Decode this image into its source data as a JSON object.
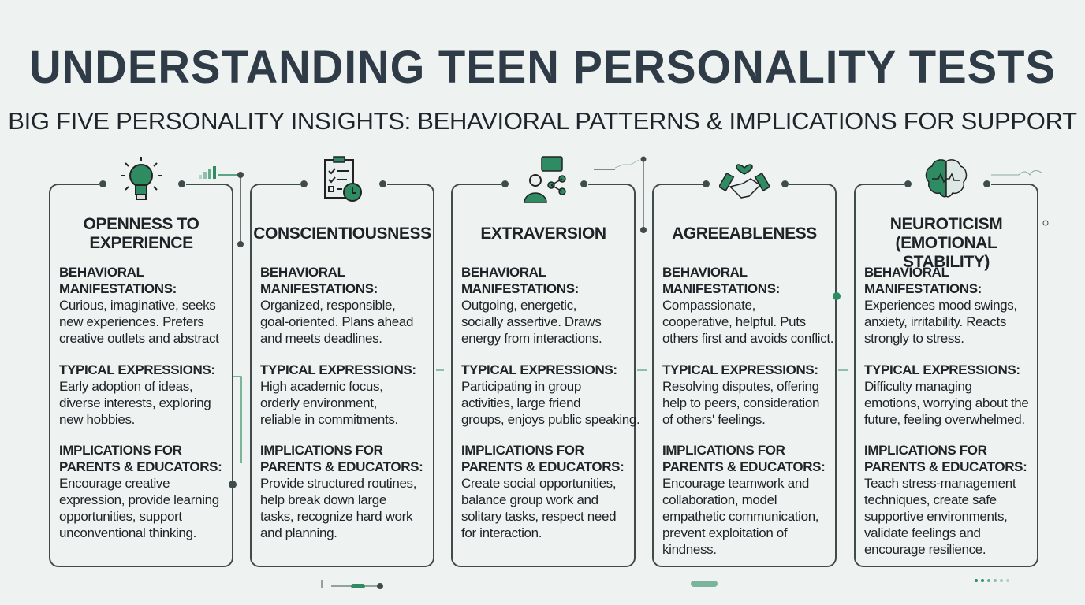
{
  "title": "UNDERSTANDING TEEN PERSONALITY TESTS",
  "subtitle": "BIG FIVE PERSONALITY INSIGHTS: BEHAVIORAL PATTERNS & IMPLICATIONS FOR SUPPORT",
  "accent": "#2e8b62",
  "panels": [
    {
      "icon": "lightbulb-icon",
      "title": [
        "OPENNESS TO",
        "EXPERIENCE"
      ],
      "behavioral_heading": [
        "BEHAVIORAL",
        "MANIFESTATIONS:"
      ],
      "behavioral": [
        "Curious, imaginative, seeks",
        "new experiences. Prefers",
        "creative outlets and abstract"
      ],
      "typical_heading": [
        "TYPICAL EXPRESSIONS:"
      ],
      "typical": [
        "Early adoption of ideas,",
        "diverse interests, exploring",
        "new hobbies."
      ],
      "implications_heading": [
        "IMPLICATIONS FOR",
        "PARENTS & EDUCATORS:"
      ],
      "implications": [
        "Encourage creative",
        "expression, provide learning",
        "opportunities, support",
        "unconventional thinking."
      ]
    },
    {
      "icon": "checklist-clock-icon",
      "title": [
        "CONSCIENTIOUSNESS"
      ],
      "behavioral_heading": [
        "BEHAVIORAL",
        "MANIFESTATIONS:"
      ],
      "behavioral": [
        "Organized, responsible,",
        "goal-oriented. Plans ahead",
        "and meets deadlines."
      ],
      "typical_heading": [
        "TYPICAL EXPRESSIONS:"
      ],
      "typical": [
        "High academic focus,",
        "orderly environment,",
        "reliable in commitments."
      ],
      "implications_heading": [
        "IMPLICATIONS FOR",
        "PARENTS & EDUCATORS:"
      ],
      "implications": [
        "Provide structured routines,",
        "help break down large",
        "tasks, recognize hard work",
        "and planning."
      ]
    },
    {
      "icon": "person-chat-network-icon",
      "title": [
        "EXTRAVERSION"
      ],
      "behavioral_heading": [
        "BEHAVIORAL",
        "MANIFESTATIONS:"
      ],
      "behavioral": [
        "Outgoing, energetic,",
        "socially assertive. Draws",
        "energy from interactions."
      ],
      "typical_heading": [
        "TYPICAL EXPRESSIONS:"
      ],
      "typical": [
        "Participating in group",
        "activities, large friend",
        "groups, enjoys public speaking."
      ],
      "implications_heading": [
        "IMPLICATIONS FOR",
        "PARENTS & EDUCATORS:"
      ],
      "implications": [
        "Create social opportunities,",
        "balance group work and",
        "solitary tasks, respect need",
        "for interaction."
      ]
    },
    {
      "icon": "handshake-heart-icon",
      "title": [
        "AGREEABLENESS"
      ],
      "behavioral_heading": [
        "BEHAVIORAL",
        "MANIFESTATIONS:"
      ],
      "behavioral": [
        "Compassionate,",
        "cooperative, helpful. Puts",
        "others first and avoids conflict."
      ],
      "typical_heading": [
        "TYPICAL EXPRESSIONS:"
      ],
      "typical": [
        "Resolving disputes, offering",
        "help to peers, consideration",
        "of others' feelings."
      ],
      "implications_heading": [
        "IMPLICATIONS FOR",
        "PARENTS & EDUCATORS:"
      ],
      "implications": [
        "Encourage teamwork and",
        "collaboration, model",
        "empathetic communication,",
        "prevent exploitation of",
        "kindness."
      ]
    },
    {
      "icon": "brain-pulse-icon",
      "title": [
        "NEUROTICISM",
        "(EMOTIONAL STABILITY)"
      ],
      "behavioral_heading": [
        "BEHAVIORAL",
        "MANIFESTATIONS:"
      ],
      "behavioral": [
        "Experiences mood swings,",
        "anxiety, irritability. Reacts",
        "strongly to stress."
      ],
      "typical_heading": [
        "TYPICAL EXPRESSIONS:"
      ],
      "typical": [
        "Difficulty managing",
        "emotions, worrying about the",
        "future, feeling overwhelmed."
      ],
      "implications_heading": [
        "IMPLICATIONS FOR",
        "PARENTS & EDUCATORS:"
      ],
      "implications": [
        "Teach stress-management",
        "techniques, create safe",
        "supportive environments,",
        "validate feelings and",
        "encourage resilience."
      ]
    }
  ]
}
